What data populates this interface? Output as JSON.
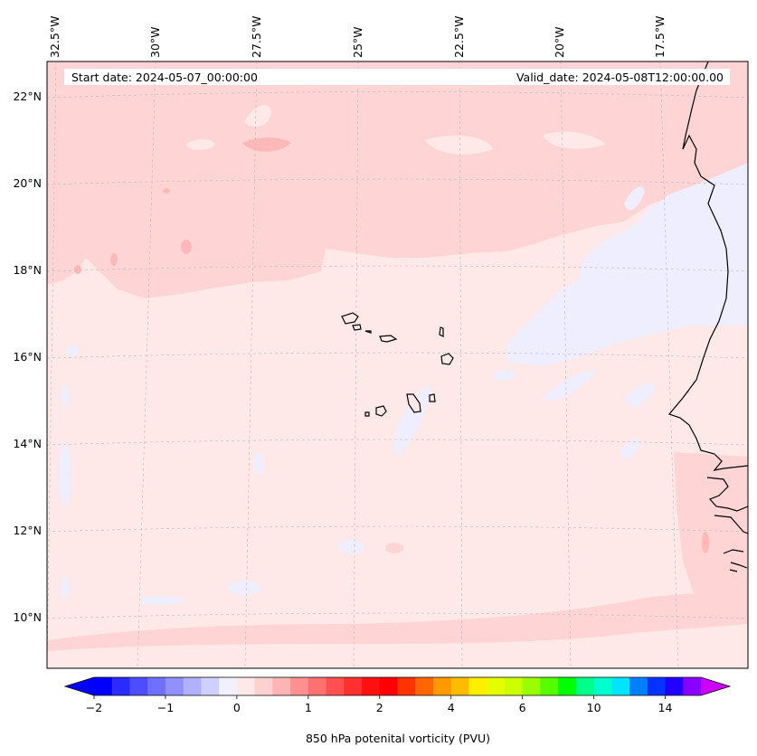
{
  "header": {
    "start_date": "Start date: 2024-05-07_00:00:00",
    "valid_date": "Valid_date: 2024-05-08T12:00:00.00"
  },
  "lon_labels": [
    "32.5°W",
    "30°W",
    "27.5°W",
    "25°W",
    "22.5°W",
    "20°W",
    "17.5°W"
  ],
  "lat_labels": [
    "22°N",
    "20°N",
    "18°N",
    "16°N",
    "14°N",
    "12°N",
    "10°N"
  ],
  "colorbar": {
    "label": "850 hPa potenital vorticity (PVU)",
    "ticks": [
      "−2",
      "−1",
      "0",
      "1",
      "2",
      "4",
      "6",
      "10",
      "14"
    ],
    "colors": [
      "#0000ff",
      "#2b2bff",
      "#4d4dff",
      "#7070ff",
      "#9090ff",
      "#b0b0ff",
      "#d0d0ff",
      "#f0f0ff",
      "#ffe8e8",
      "#ffd0d0",
      "#ffb4b4",
      "#ff9090",
      "#ff7070",
      "#ff5050",
      "#ff3030",
      "#ff1010",
      "#ff0000",
      "#ff3300",
      "#ff6600",
      "#ff9900",
      "#ffbb00",
      "#ffee00",
      "#e6ff00",
      "#ccff00",
      "#99ff00",
      "#55ff00",
      "#00ff00",
      "#00ff88",
      "#00ffcc",
      "#00e5ff",
      "#0080ff",
      "#0033ff",
      "#2200ff",
      "#8800ff"
    ],
    "extend_left_color": "#0000ff",
    "extend_right_color": "#cc00ff"
  },
  "field_colors": {
    "background": "#ffe8e8",
    "positive_light": "#ffd4d4",
    "positive_mid": "#ffb8b8",
    "negative_light": "#eeeeff",
    "negative_mid": "#d8d8ff"
  }
}
